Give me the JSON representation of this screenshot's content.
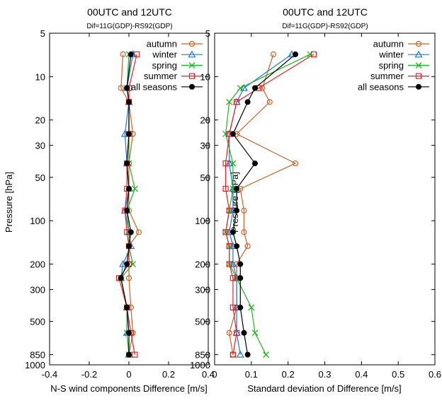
{
  "chart_data": [
    {
      "type": "line",
      "title": "00UTC and 12UTC",
      "subtitle": "Dif=11G(GDP)-RS92(GDP)",
      "xlabel": "N-S wind components Difference [m/s]",
      "ylabel": "Pressure [hPa]",
      "xlim": [
        -0.4,
        0.4
      ],
      "ylim": [
        1000,
        5
      ],
      "yscale": "log",
      "xticks": [
        "-0.4",
        "-0.2",
        "0",
        "0.2",
        "0.4"
      ],
      "yticks": [
        "5",
        "10",
        "20",
        "30",
        "50",
        "100",
        "200",
        "300",
        "500",
        "850",
        "1000"
      ],
      "legend_position": "top-right",
      "pressure_levels": [
        7,
        12,
        15,
        25,
        40,
        60,
        85,
        120,
        150,
        200,
        250,
        400,
        600,
        850
      ],
      "series": [
        {
          "name": "autumn",
          "color": "#c8642a",
          "marker": "circle",
          "values": [
            -0.03,
            -0.04,
            0.0,
            0.02,
            0.0,
            0.0,
            0.0,
            0.05,
            0.0,
            0.0,
            0.0,
            0.01,
            0.02,
            0.0
          ]
        },
        {
          "name": "winter",
          "color": "#1e78d2",
          "marker": "triangle",
          "values": [
            0.02,
            -0.01,
            0.0,
            -0.02,
            -0.01,
            0.0,
            -0.02,
            0.0,
            0.01,
            -0.03,
            -0.04,
            -0.01,
            -0.01,
            0.0
          ]
        },
        {
          "name": "spring",
          "color": "#21b321",
          "marker": "x",
          "values": [
            0.0,
            -0.01,
            0.0,
            0.0,
            0.0,
            0.03,
            -0.01,
            0.0,
            0.0,
            0.02,
            -0.04,
            -0.01,
            -0.01,
            0.0
          ]
        },
        {
          "name": "summer",
          "color": "#e02424",
          "marker": "square",
          "values": [
            0.04,
            0.0,
            0.0,
            0.0,
            -0.01,
            -0.01,
            -0.02,
            -0.01,
            0.0,
            0.0,
            -0.05,
            -0.01,
            0.01,
            0.03
          ]
        },
        {
          "name": "all seasons",
          "color": "#000000",
          "marker": "dot",
          "values": [
            0.01,
            -0.01,
            0.0,
            0.0,
            -0.01,
            0.0,
            -0.01,
            0.01,
            0.0,
            -0.01,
            -0.04,
            -0.01,
            0.0,
            0.0
          ]
        }
      ]
    },
    {
      "type": "line",
      "title": "00UTC and 12UTC",
      "subtitle": "Dif=11G(GDP)-RS92(GDP)",
      "xlabel": "Standard deviation of Difference [m/s]",
      "ylabel": "Pressure [hPa]",
      "xlim": [
        0,
        0.6
      ],
      "ylim": [
        1000,
        5
      ],
      "yscale": "log",
      "xticks": [
        "0",
        "0.1",
        "0.2",
        "0.3",
        "0.4",
        "0.5",
        "0.6"
      ],
      "yticks": [
        "5",
        "10",
        "20",
        "30",
        "50",
        "100",
        "200",
        "300",
        "500",
        "850",
        "1000"
      ],
      "legend_position": "top-right",
      "pressure_levels": [
        7,
        12,
        15,
        25,
        40,
        60,
        85,
        120,
        150,
        200,
        250,
        400,
        600,
        850
      ],
      "series": [
        {
          "name": "autumn",
          "color": "#c8642a",
          "marker": "circle",
          "values": [
            0.16,
            0.13,
            0.15,
            0.06,
            0.22,
            0.07,
            0.08,
            0.08,
            0.09,
            0.06,
            0.06,
            0.06,
            0.04,
            0.05
          ]
        },
        {
          "name": "winter",
          "color": "#1e78d2",
          "marker": "triangle",
          "values": [
            0.21,
            0.08,
            0.06,
            0.04,
            0.04,
            0.05,
            0.05,
            0.04,
            0.05,
            0.05,
            0.06,
            0.06,
            0.06,
            0.07
          ]
        },
        {
          "name": "spring",
          "color": "#21b321",
          "marker": "x",
          "values": [
            0.26,
            0.07,
            0.04,
            0.03,
            0.05,
            0.05,
            0.04,
            0.03,
            0.04,
            0.04,
            0.06,
            0.1,
            0.11,
            0.14
          ]
        },
        {
          "name": "summer",
          "color": "#e02424",
          "marker": "square",
          "values": [
            0.27,
            0.12,
            0.06,
            0.04,
            0.03,
            0.03,
            0.04,
            0.03,
            0.04,
            0.04,
            0.05,
            0.05,
            0.06,
            0.05
          ]
        },
        {
          "name": "all seasons",
          "color": "#000000",
          "marker": "dot",
          "values": [
            0.22,
            0.11,
            0.09,
            0.05,
            0.11,
            0.06,
            0.06,
            0.05,
            0.06,
            0.07,
            0.07,
            0.07,
            0.08,
            0.09
          ]
        }
      ]
    }
  ]
}
